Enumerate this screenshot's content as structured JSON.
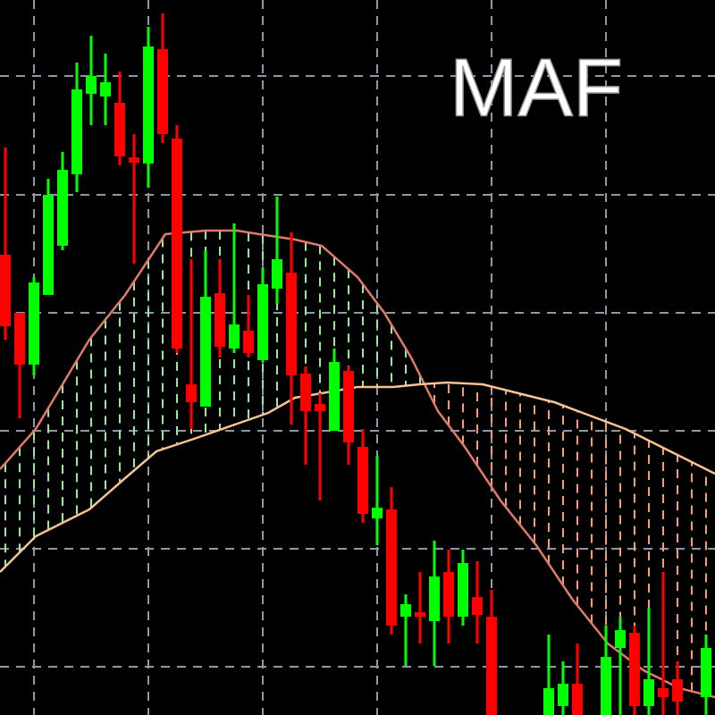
{
  "chart_data": {
    "type": "candlestick",
    "title": "MAF",
    "xlim": [
      0,
      800
    ],
    "ylim": [
      0,
      800
    ],
    "xticks": [
      38,
      166,
      294,
      422,
      550,
      678
    ],
    "yticks": [
      54,
      186,
      318,
      450,
      582,
      715
    ],
    "grid": true,
    "grid_color": "#8a9aaa",
    "up_color": "#00ff00",
    "down_color": "#ff0000",
    "cloud_up_color": "#90ee90",
    "cloud_down_color": "#ff9966",
    "x": [
      6,
      22,
      38,
      54,
      70,
      86,
      102,
      118,
      134,
      150,
      166,
      182,
      198,
      214,
      230,
      246,
      262,
      278,
      294,
      310,
      326,
      342,
      358,
      374,
      390,
      406,
      422,
      438,
      454,
      470,
      486,
      502,
      518,
      534,
      550,
      614,
      630,
      646,
      678,
      694,
      710,
      726,
      742,
      758,
      790
    ],
    "open": [
      515,
      450,
      392,
      470,
      525,
      605,
      695,
      692,
      685,
      624,
      617,
      745,
      645,
      370,
      345,
      472,
      410,
      430,
      397,
      477,
      495,
      382,
      348,
      318,
      385,
      300,
      220,
      230,
      110,
      115,
      105,
      160,
      110,
      132,
      110,
      0,
      10,
      35,
      0,
      75,
      92,
      10,
      30,
      40,
      20
    ],
    "high": [
      635,
      450,
      490,
      600,
      630,
      730,
      760,
      740,
      720,
      650,
      770,
      785,
      660,
      510,
      520,
      510,
      550,
      470,
      500,
      580,
      540,
      390,
      360,
      410,
      390,
      320,
      290,
      255,
      135,
      160,
      195,
      185,
      185,
      172,
      140,
      90,
      60,
      80,
      100,
      110,
      100,
      120,
      160,
      60,
      90
    ],
    "low": [
      420,
      332,
      380,
      470,
      520,
      585,
      660,
      660,
      615,
      505,
      590,
      640,
      405,
      320,
      345,
      400,
      405,
      400,
      395,
      460,
      325,
      280,
      240,
      318,
      280,
      215,
      190,
      90,
      55,
      80,
      55,
      80,
      100,
      80,
      0,
      0,
      0,
      0,
      0,
      0,
      0,
      0,
      0,
      0,
      0
    ],
    "close": [
      435,
      392,
      484,
      582,
      610,
      700,
      715,
      708,
      625,
      618,
      748,
      650,
      410,
      350,
      468,
      412,
      437,
      405,
      482,
      510,
      380,
      340,
      340,
      395,
      305,
      225,
      232,
      100,
      124,
      110,
      155,
      110,
      170,
      112,
      0,
      30,
      35,
      0,
      65,
      95,
      10,
      40,
      20,
      15,
      75
    ],
    "series": [
      {
        "type": "line",
        "color": "#e07a6a",
        "x": [
          0,
          40,
          100,
          140,
          185,
          230,
          265,
          290,
          330,
          360,
          400,
          430,
          460,
          490,
          520,
          560,
          600,
          640,
          680,
          720,
          760,
          800
        ],
        "values": [
          275,
          320,
          420,
          470,
          538,
          542,
          542,
          538,
          532,
          525,
          490,
          450,
          400,
          340,
          300,
          240,
          190,
          130,
          80,
          50,
          30,
          20
        ]
      },
      {
        "type": "line",
        "color": "#f5c394",
        "x": [
          0,
          40,
          100,
          140,
          175,
          220,
          260,
          300,
          330,
          360,
          400,
          440,
          470,
          500,
          540,
          580,
          620,
          660,
          700,
          740,
          780,
          800
        ],
        "values": [
          160,
          200,
          230,
          265,
          295,
          310,
          324,
          338,
          355,
          360,
          367,
          367,
          370,
          372,
          370,
          360,
          350,
          335,
          320,
          300,
          280,
          270
        ]
      }
    ]
  }
}
